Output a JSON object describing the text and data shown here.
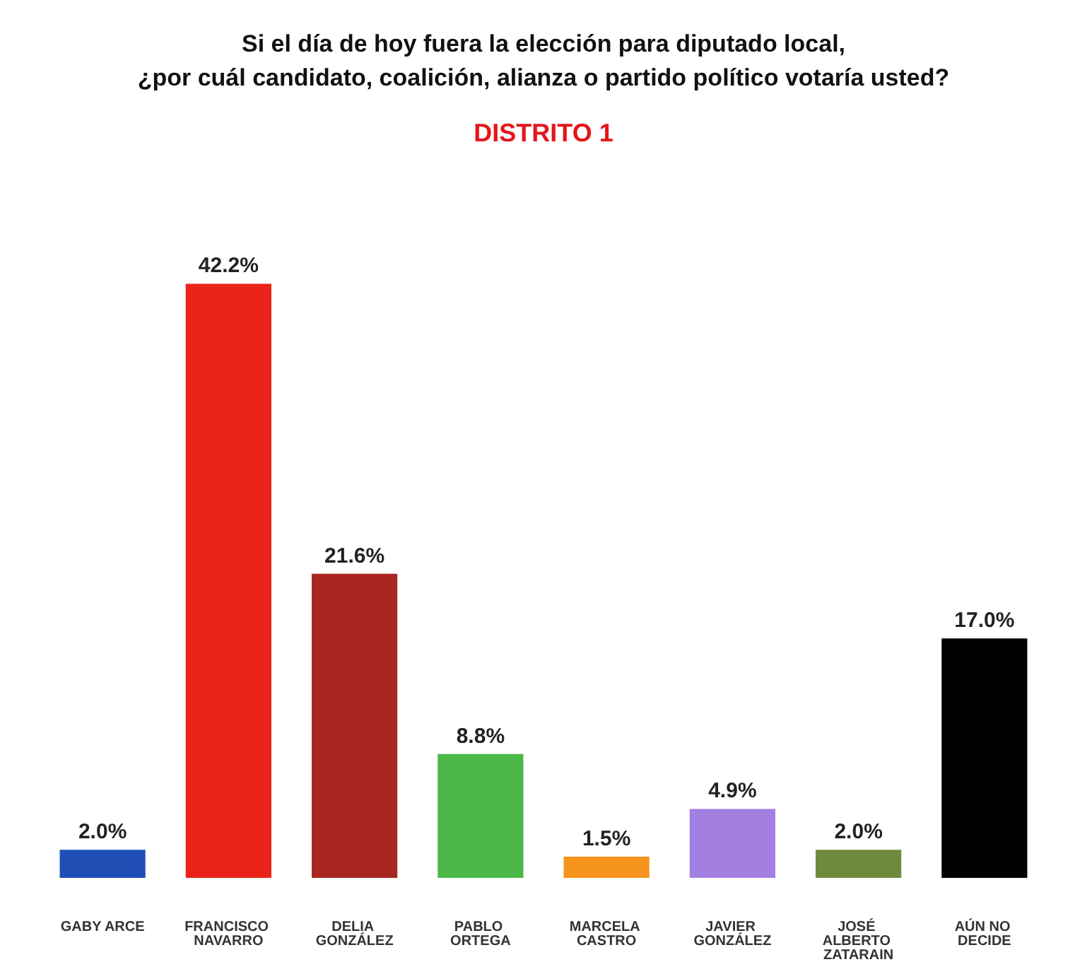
{
  "chart_data": {
    "type": "bar",
    "title": "Si el día de hoy fuera la elección para diputado local,\n¿por cuál candidato, coalición, alianza o partido político votaría usted?",
    "subtitle": "DISTRITO 1",
    "categories": [
      "GABY ARCE",
      "FRANCISCO NAVARRO",
      "DELIA GONZÁLEZ",
      "PABLO ORTEGA",
      "MARCELA CASTRO",
      "JAVIER GONZÁLEZ",
      "JOSÉ ALBERTO ZATARAIN",
      "AÚN NO DECIDE"
    ],
    "values": [
      2.0,
      42.2,
      21.6,
      8.8,
      1.5,
      4.9,
      2.0,
      17.0
    ],
    "value_labels": [
      "2.0%",
      "42.2%",
      "21.6%",
      "8.8%",
      "1.5%",
      "4.9%",
      "2.0%",
      "17.0%"
    ],
    "colors": [
      "#1f4fb5",
      "#ea2418",
      "#a82521",
      "#4cb848",
      "#f7941d",
      "#a27fe0",
      "#6e8b3d",
      "#000000"
    ]
  }
}
